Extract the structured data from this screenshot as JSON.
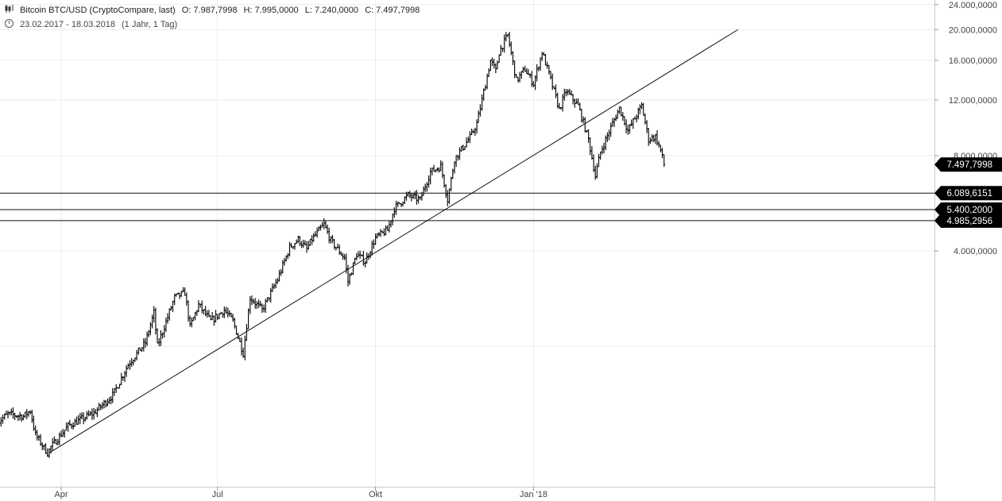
{
  "header": {
    "icon": "candlestick-chart-icon",
    "symbol": "Bitcoin BTC/USD (CryptoCompare, last)",
    "open": "O: 7.987,7998",
    "high": "H: 7.995,0000",
    "low": "L: 7.240,0000",
    "close": "C: 7.497,7998",
    "period_icon": "clock-icon",
    "period": "23.02.2017 - 18.03.2018",
    "interval": "(1 Jahr, 1 Tag)"
  },
  "chart_data": {
    "type": "ohlc",
    "scale": "log",
    "y_ticks": [
      4000,
      8000,
      12000,
      16000,
      20000,
      24000
    ],
    "y_tick_labels": [
      "4.000,0000",
      "8.000,0000",
      "12.000,0000",
      "16.000,0000",
      "20.000,0000",
      "24.000,0000"
    ],
    "x_ticks": [
      "2017-04-01",
      "2017-07-01",
      "2017-10-01",
      "2018-01-01"
    ],
    "x_tick_labels": [
      "Apr",
      "Jul",
      "Okt",
      "Jan '18"
    ],
    "grid": true,
    "price_path": [
      [
        "2017-02-23",
        1150
      ],
      [
        "2017-03-01",
        1220
      ],
      [
        "2017-03-10",
        1200
      ],
      [
        "2017-03-14",
        1250
      ],
      [
        "2017-03-17",
        1050
      ],
      [
        "2017-03-24",
        920
      ],
      [
        "2017-03-26",
        960
      ],
      [
        "2017-04-05",
        1120
      ],
      [
        "2017-04-20",
        1230
      ],
      [
        "2017-05-01",
        1400
      ],
      [
        "2017-05-10",
        1750
      ],
      [
        "2017-05-20",
        2050
      ],
      [
        "2017-05-25",
        2550
      ],
      [
        "2017-05-27",
        2000
      ],
      [
        "2017-06-06",
        2850
      ],
      [
        "2017-06-12",
        2950
      ],
      [
        "2017-06-15",
        2300
      ],
      [
        "2017-06-20",
        2700
      ],
      [
        "2017-06-27",
        2400
      ],
      [
        "2017-07-05",
        2600
      ],
      [
        "2017-07-10",
        2400
      ],
      [
        "2017-07-16",
        1900
      ],
      [
        "2017-07-20",
        2850
      ],
      [
        "2017-07-27",
        2600
      ],
      [
        "2017-08-05",
        3250
      ],
      [
        "2017-08-12",
        4100
      ],
      [
        "2017-08-17",
        4350
      ],
      [
        "2017-08-22",
        4050
      ],
      [
        "2017-08-25",
        4350
      ],
      [
        "2017-09-01",
        4850
      ],
      [
        "2017-09-05",
        4300
      ],
      [
        "2017-09-13",
        3800
      ],
      [
        "2017-09-15",
        3200
      ],
      [
        "2017-09-20",
        3900
      ],
      [
        "2017-09-25",
        3700
      ],
      [
        "2017-10-01",
        4400
      ],
      [
        "2017-10-08",
        4650
      ],
      [
        "2017-10-12",
        5450
      ],
      [
        "2017-10-20",
        6000
      ],
      [
        "2017-10-27",
        5800
      ],
      [
        "2017-11-02",
        7100
      ],
      [
        "2017-11-08",
        7400
      ],
      [
        "2017-11-12",
        5800
      ],
      [
        "2017-11-16",
        7800
      ],
      [
        "2017-11-26",
        9300
      ],
      [
        "2017-11-29",
        10100
      ],
      [
        "2017-12-07",
        16000
      ],
      [
        "2017-12-10",
        14800
      ],
      [
        "2017-12-12",
        17000
      ],
      [
        "2017-12-17",
        19200
      ],
      [
        "2017-12-22",
        13800
      ],
      [
        "2017-12-27",
        15000
      ],
      [
        "2018-01-01",
        13500
      ],
      [
        "2018-01-06",
        17000
      ],
      [
        "2018-01-10",
        14500
      ],
      [
        "2018-01-16",
        11200
      ],
      [
        "2018-01-20",
        12800
      ],
      [
        "2018-01-27",
        11500
      ],
      [
        "2018-02-02",
        9000
      ],
      [
        "2018-02-06",
        6900
      ],
      [
        "2018-02-09",
        8200
      ],
      [
        "2018-02-16",
        10100
      ],
      [
        "2018-02-20",
        11300
      ],
      [
        "2018-02-25",
        9600
      ],
      [
        "2018-03-05",
        11500
      ],
      [
        "2018-03-09",
        9000
      ],
      [
        "2018-03-13",
        9200
      ],
      [
        "2018-03-16",
        8300
      ],
      [
        "2018-03-18",
        7498
      ]
    ],
    "trendline": [
      [
        "2017-03-25",
        920
      ],
      [
        "2018-04-30",
        20000
      ]
    ],
    "horizontal_lines": [
      {
        "value": 6089.6151,
        "label": "6.089,6151"
      },
      {
        "value": 5400.2,
        "label": "5.400,2000"
      },
      {
        "value": 4985.2956,
        "label": "4.985,2956"
      }
    ],
    "last_price": {
      "value": 7497.7998,
      "label": "7.497,7998"
    }
  }
}
